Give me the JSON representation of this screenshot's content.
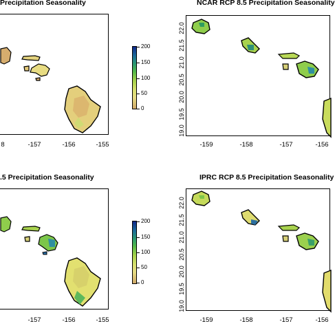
{
  "panels": [
    {
      "title": "Precipitation Seasonality",
      "x_ticks": [
        "8",
        "-157",
        "-156",
        "-155"
      ],
      "legend_ticks": [
        "200",
        "150",
        "100",
        "50",
        "0"
      ]
    },
    {
      "title": "NCAR RCP 8.5 Precipitation Seasonality",
      "x_ticks": [
        "-159",
        "-158",
        "-157",
        "-156"
      ],
      "y_ticks": [
        "22.0",
        "21.5",
        "21.0",
        "20.5",
        "20.0",
        "19.5",
        "19.0"
      ]
    },
    {
      "title": ".5 Precipitation Seasonality",
      "x_ticks": [
        "-157",
        "-156",
        "-155"
      ],
      "legend_ticks": [
        "200",
        "150",
        "100",
        "50",
        "0"
      ]
    },
    {
      "title": "IPRC RCP 8.5 Precipitation Seasonality",
      "x_ticks": [
        "-159",
        "-158",
        "-157",
        "-156"
      ],
      "y_ticks": [
        "22.0",
        "21.5",
        "21.0",
        "20.5",
        "20.0",
        "19.5",
        "19.0"
      ]
    }
  ],
  "colors": {
    "low": "#cfa868",
    "mid_low": "#e6dc84",
    "mid": "#a6d34a",
    "mid_high": "#2a9a70",
    "high": "#10288a"
  }
}
